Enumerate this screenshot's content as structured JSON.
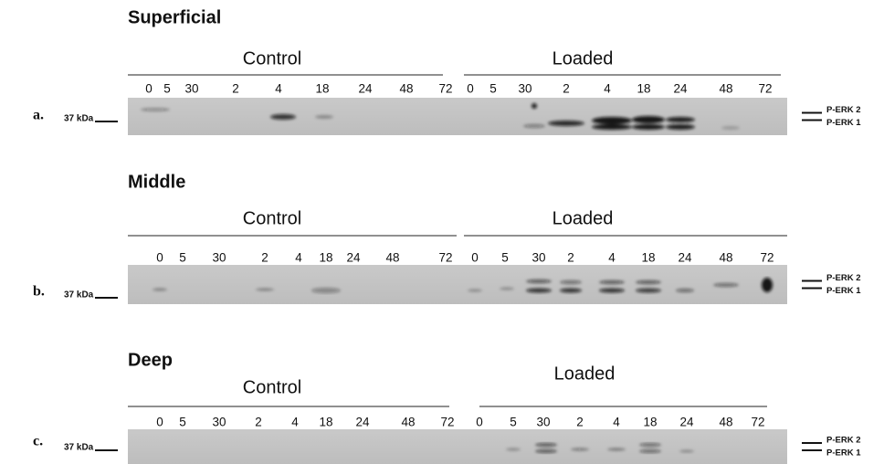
{
  "panels": [
    {
      "letter": "a.",
      "title": "Superficial",
      "marker": "37 kDa",
      "bands": [
        "P-ERK 2",
        "P-ERK 1"
      ],
      "groups": [
        {
          "label": "Control",
          "lanes": [
            "0",
            "5",
            "30",
            "2",
            "4",
            "18",
            "24",
            "48",
            "72"
          ]
        },
        {
          "label": "Loaded",
          "lanes": [
            "0",
            "5",
            "30",
            "2",
            "4",
            "18",
            "24",
            "48",
            "72"
          ]
        }
      ]
    },
    {
      "letter": "b.",
      "title": "Middle",
      "marker": "37 kDa",
      "bands": [
        "P-ERK 2",
        "P-ERK 1"
      ],
      "groups": [
        {
          "label": "Control",
          "lanes": [
            "0",
            "5",
            "30",
            "2",
            "4",
            "18",
            "24",
            "48",
            "72"
          ]
        },
        {
          "label": "Loaded",
          "lanes": [
            "0",
            "5",
            "30",
            "2",
            "4",
            "18",
            "24",
            "48",
            "72"
          ]
        }
      ]
    },
    {
      "letter": "c.",
      "title": "Deep",
      "marker": "37 kDa",
      "bands": [
        "P-ERK 2",
        "P-ERK 1"
      ],
      "groups": [
        {
          "label": "Control",
          "lanes": [
            "0",
            "5",
            "30",
            "2",
            "4",
            "18",
            "24",
            "48",
            "72"
          ]
        },
        {
          "label": "Loaded",
          "lanes": [
            "0",
            "5",
            "30",
            "2",
            "4",
            "18",
            "24",
            "48",
            "72"
          ]
        }
      ]
    }
  ]
}
